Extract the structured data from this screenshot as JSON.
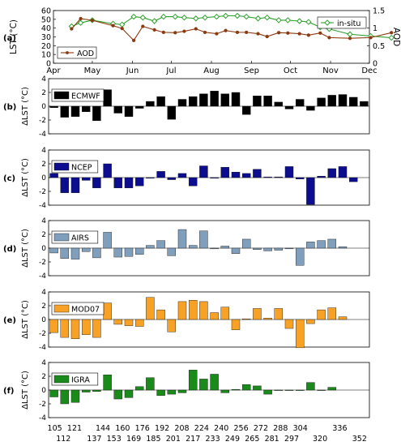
{
  "chart_data": [
    {
      "id": "a",
      "type": "line",
      "panel_label": "(a)",
      "months": [
        "Apr",
        "May",
        "Jun",
        "Jul",
        "Aug",
        "Sep",
        "Oct",
        "Nov",
        "Dec"
      ],
      "ylabel_left": "LST (°C)",
      "ylabel_right": "AOD",
      "ylim_left": [
        0,
        60
      ],
      "yticks_left": [
        "0",
        "10",
        "20",
        "30",
        "40",
        "50",
        "60"
      ],
      "ylim_right": [
        0,
        1.5
      ],
      "yticks_right": [
        "0",
        "0.5",
        "1",
        "1.5"
      ],
      "doy": [
        105,
        112,
        121,
        137,
        144,
        153,
        160,
        169,
        176,
        185,
        192,
        201,
        208,
        217,
        224,
        233,
        240,
        249,
        256,
        265,
        272,
        281,
        288,
        297,
        304,
        320,
        336,
        352
      ],
      "series": [
        {
          "name": "in-situ",
          "axis": "left",
          "color": "#2ca02c",
          "marker": "diamond",
          "values": [
            42,
            46,
            49,
            45,
            44,
            53,
            52,
            48,
            53,
            53,
            52,
            51,
            52,
            53,
            54,
            54,
            53,
            51,
            52,
            49,
            49,
            48,
            47,
            41,
            39,
            33,
            31,
            29
          ]
        },
        {
          "name": "AOD",
          "axis": "right",
          "color": "#8b3a0f",
          "marker": "circle",
          "values": [
            0.98,
            1.27,
            1.22,
            1.07,
            0.99,
            0.65,
            1.05,
            0.95,
            0.88,
            0.87,
            0.91,
            0.98,
            0.88,
            0.84,
            0.93,
            0.88,
            0.88,
            0.84,
            0.76,
            0.87,
            0.86,
            0.84,
            0.8,
            0.86,
            0.73,
            0.71,
            0.73,
            0.87
          ]
        }
      ]
    },
    {
      "id": "b",
      "type": "bar",
      "panel_label": "(b)",
      "legend": "ECMWF",
      "color": "#000000",
      "ylabel": "ΔLST (°C)",
      "ylim": [
        -4,
        4
      ],
      "yticks": [
        "4",
        "2",
        "0",
        "-2",
        "-4"
      ],
      "values": [
        -0.2,
        -1.6,
        -1.5,
        -0.8,
        -2.1,
        2.4,
        -1.0,
        -1.5,
        -0.3,
        0.7,
        1.4,
        -1.9,
        1.0,
        1.4,
        1.8,
        2.2,
        1.8,
        2.0,
        -1.2,
        1.5,
        1.5,
        0.6,
        -0.4,
        1.0,
        -0.6,
        1.2,
        1.6,
        1.7,
        1.3,
        0.7
      ]
    },
    {
      "id": "c",
      "type": "bar",
      "panel_label": "(c)",
      "legend": "NCEP",
      "color": "#0d0d8f",
      "ylabel": "ΔLST (°C)",
      "ylim": [
        -4,
        4
      ],
      "yticks": [
        "4",
        "2",
        "0",
        "-2",
        "-4"
      ],
      "values": [
        0.6,
        -2.2,
        -2.2,
        -0.4,
        -1.5,
        2.0,
        -1.5,
        -1.5,
        -1.2,
        -0.1,
        0.9,
        -0.3,
        0.6,
        -1.2,
        1.7,
        -0.1,
        1.5,
        0.8,
        0.6,
        1.2,
        0.1,
        0.1,
        1.6,
        -0.2,
        -3.9,
        0.2,
        1.3,
        1.6,
        -0.6
      ]
    },
    {
      "id": "d",
      "type": "bar",
      "panel_label": "(d)",
      "legend": "AIRS",
      "color": "#7f9fbd",
      "ylabel": "ΔLST (°C)",
      "ylim": [
        -4,
        4
      ],
      "yticks": [
        "4",
        "2",
        "0",
        "-2",
        "-4"
      ],
      "values": [
        -0.7,
        -1.5,
        -1.6,
        -0.5,
        -1.4,
        2.3,
        -1.3,
        -1.2,
        -0.9,
        0.4,
        1.1,
        -1.1,
        2.7,
        0.4,
        2.5,
        -0.1,
        0.3,
        -0.8,
        1.3,
        -0.2,
        -0.4,
        -0.3,
        -0.1,
        -2.5,
        0.9,
        1.1,
        1.3,
        0.2
      ]
    },
    {
      "id": "e",
      "type": "bar",
      "panel_label": "(e)",
      "legend": "MOD07",
      "color": "#f7a127",
      "ylabel": "ΔLST (°C)",
      "ylim": [
        -4,
        4
      ],
      "yticks": [
        "4",
        "2",
        "0",
        "-2",
        "-4"
      ],
      "values": [
        -1.9,
        -2.6,
        -2.8,
        -2.2,
        -2.6,
        2.4,
        -0.7,
        -0.9,
        -1.0,
        3.2,
        1.4,
        -1.8,
        2.6,
        2.8,
        2.6,
        1.0,
        1.8,
        -1.5,
        0.1,
        1.6,
        0.2,
        1.6,
        -1.3,
        -4.1,
        -0.6,
        1.4,
        1.7,
        0.4
      ]
    },
    {
      "id": "f",
      "type": "bar",
      "panel_label": "(f)",
      "legend": "IGRA",
      "color": "#1a8a1a",
      "ylabel": "ΔLST (°C)",
      "ylim": [
        -4,
        4
      ],
      "yticks": [
        "4",
        "2",
        "0",
        "-2",
        "-4"
      ],
      "values": [
        -1.0,
        -2.0,
        -1.8,
        -0.3,
        -0.2,
        2.2,
        -1.3,
        -1.1,
        0.5,
        1.8,
        -0.8,
        -0.6,
        -0.4,
        2.9,
        1.6,
        2.3,
        -0.4,
        0.1,
        0.8,
        0.6,
        -0.6,
        0.0,
        0.0,
        0.0,
        1.1,
        0.0,
        0.4
      ]
    }
  ],
  "xaxis": {
    "ticks_top": [
      "105",
      "121",
      "144",
      "160",
      "176",
      "192",
      "208",
      "224",
      "240",
      "256",
      "272",
      "288",
      "304",
      "336"
    ],
    "ticks_bottom": [
      "112",
      "137",
      "153",
      "169",
      "185",
      "201",
      "217",
      "233",
      "249",
      "265",
      "281",
      "297",
      "320",
      "352"
    ]
  }
}
